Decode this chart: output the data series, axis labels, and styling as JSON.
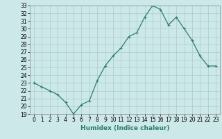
{
  "xlabel": "Humidex (Indice chaleur)",
  "x": [
    0,
    1,
    2,
    3,
    4,
    5,
    6,
    7,
    8,
    9,
    10,
    11,
    12,
    13,
    14,
    15,
    16,
    17,
    18,
    19,
    20,
    21,
    22,
    23
  ],
  "y": [
    23,
    22.5,
    22,
    21.5,
    20.5,
    19,
    20.2,
    20.7,
    23.3,
    25.2,
    26.5,
    27.5,
    29.0,
    29.5,
    31.5,
    33.0,
    32.5,
    30.5,
    31.5,
    30.0,
    28.5,
    26.5,
    25.2,
    25.2
  ],
  "line_color": "#2e7d6e",
  "marker": "+",
  "marker_size": 3,
  "marker_edge_width": 0.8,
  "bg_color": "#cce8e8",
  "grid_color": "#aacccc",
  "ylim": [
    19,
    33
  ],
  "xlim": [
    -0.5,
    23.5
  ],
  "yticks": [
    19,
    20,
    21,
    22,
    23,
    24,
    25,
    26,
    27,
    28,
    29,
    30,
    31,
    32,
    33
  ],
  "xticks": [
    0,
    1,
    2,
    3,
    4,
    5,
    6,
    7,
    8,
    9,
    10,
    11,
    12,
    13,
    14,
    15,
    16,
    17,
    18,
    19,
    20,
    21,
    22,
    23
  ],
  "tick_label_fontsize": 5.5,
  "xlabel_fontsize": 6.5,
  "line_width": 0.9
}
